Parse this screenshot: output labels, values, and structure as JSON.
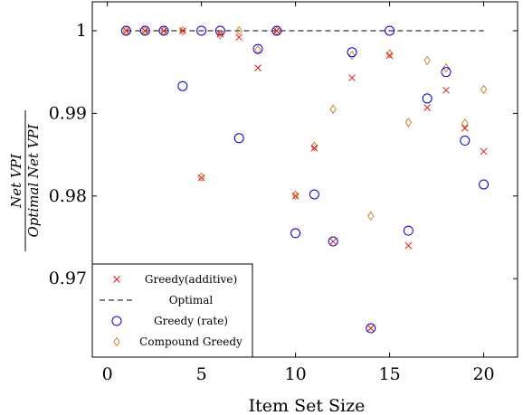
{
  "chart_data": {
    "type": "scatter",
    "xlabel": "Item Set Size",
    "ylabel_numerator": "Net VPI",
    "ylabel_denominator": "Optimal Net VPI",
    "xlim": [
      -0.8,
      21.8
    ],
    "ylim": [
      0.9605,
      1.0035
    ],
    "xticks": [
      0,
      5,
      10,
      15,
      20
    ],
    "yticks": [
      0.97,
      0.98,
      0.99,
      1
    ],
    "xtick_labels": [
      "0",
      "5",
      "10",
      "15",
      "20"
    ],
    "ytick_labels": [
      "0.97",
      "0.98",
      "0.99",
      "1"
    ],
    "legend_position": "bottom-left",
    "series": [
      {
        "name": "Greedy(additive)",
        "marker": "cross",
        "color": "#e41a1c",
        "x": [
          1,
          2,
          3,
          4,
          5,
          6,
          7,
          8,
          9,
          10,
          11,
          12,
          13,
          14,
          15,
          16,
          17,
          18,
          19,
          20
        ],
        "y": [
          1.0,
          1.0,
          1.0,
          1.0,
          0.9822,
          0.9996,
          0.9992,
          0.9955,
          1.0,
          0.98,
          0.9858,
          0.9745,
          0.9943,
          0.964,
          0.997,
          0.974,
          0.9907,
          0.9928,
          0.9882,
          0.9854
        ]
      },
      {
        "name": "Optimal",
        "marker": "dashed-line",
        "color": "#000000",
        "x": [
          1,
          20
        ],
        "y": [
          1.0,
          1.0
        ]
      },
      {
        "name": "Greedy (rate)",
        "marker": "circle",
        "color": "#0000cc",
        "x": [
          1,
          2,
          3,
          4,
          5,
          6,
          7,
          8,
          9,
          10,
          11,
          12,
          13,
          14,
          15,
          16,
          17,
          18,
          19,
          20
        ],
        "y": [
          1.0,
          1.0,
          1.0,
          0.9933,
          1.0,
          1.0,
          0.987,
          0.9978,
          1.0,
          0.9755,
          0.9802,
          0.9745,
          0.9974,
          0.964,
          1.0,
          0.9758,
          0.9918,
          0.995,
          0.9867,
          0.9814
        ]
      },
      {
        "name": "Compound Greedy",
        "marker": "diamond",
        "color": "#c87a20",
        "x": [
          1,
          2,
          3,
          4,
          5,
          6,
          7,
          8,
          9,
          10,
          11,
          12,
          13,
          14,
          15,
          16,
          17,
          18,
          19,
          20
        ],
        "y": [
          1.0,
          1.0,
          1.0,
          1.0,
          0.9823,
          0.9995,
          1.0,
          0.9977,
          1.0,
          0.9801,
          0.986,
          0.9905,
          0.997,
          0.9776,
          0.9972,
          0.9889,
          0.9964,
          0.9955,
          0.9888,
          0.9929
        ]
      }
    ]
  }
}
